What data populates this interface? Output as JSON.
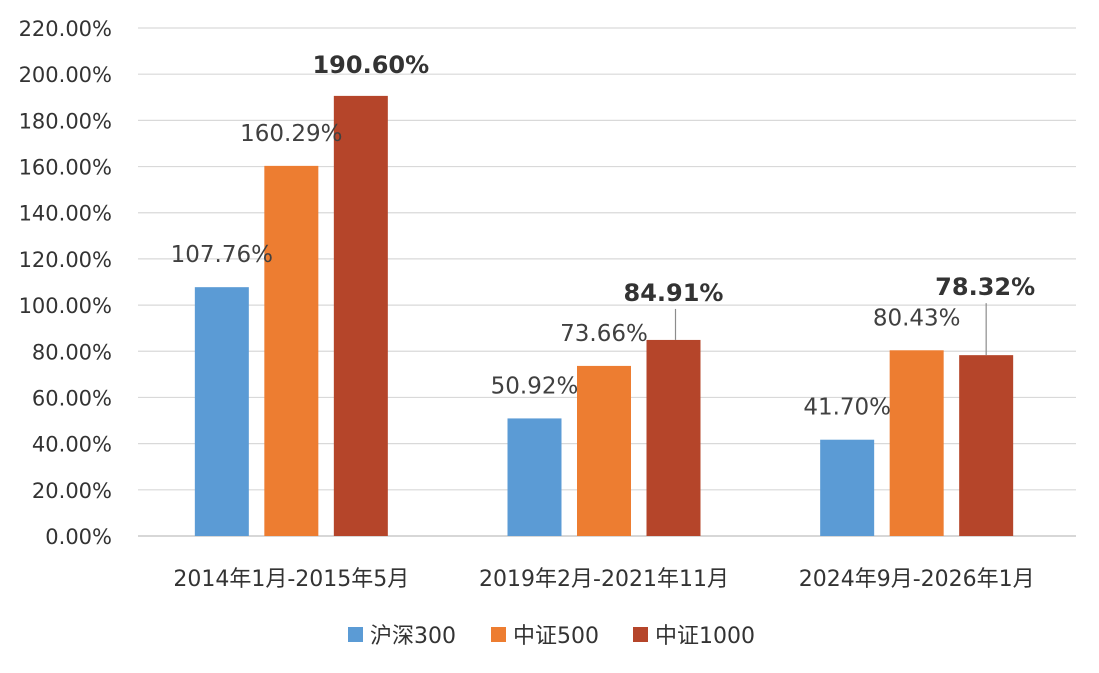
{
  "chart_data": {
    "type": "bar",
    "title": "",
    "xlabel": "",
    "ylabel": "",
    "ylim": [
      0,
      220
    ],
    "y_ticks": [
      "0.00%",
      "20.00%",
      "40.00%",
      "60.00%",
      "80.00%",
      "100.00%",
      "120.00%",
      "140.00%",
      "160.00%",
      "180.00%",
      "200.00%",
      "220.00%"
    ],
    "categories": [
      "2014年1月-2015年5月",
      "2019年2月-2021年11月",
      "2024年9月-2026年1月"
    ],
    "series": [
      {
        "name": "沪深300",
        "color": "#5b9bd5",
        "values": [
          107.76,
          50.92,
          41.7
        ],
        "labels": [
          "107.76%",
          "50.92%",
          "41.70%"
        ],
        "bold": false
      },
      {
        "name": "中证500",
        "color": "#ed7d31",
        "values": [
          160.29,
          73.66,
          80.43
        ],
        "labels": [
          "160.29%",
          "73.66%",
          "80.43%"
        ],
        "bold": false
      },
      {
        "name": "中证1000",
        "color": "#b5452a",
        "values": [
          190.6,
          84.91,
          78.32
        ],
        "labels": [
          "190.60%",
          "84.91%",
          "78.32%"
        ],
        "bold": true
      }
    ],
    "legend_position": "bottom",
    "grid": true
  }
}
